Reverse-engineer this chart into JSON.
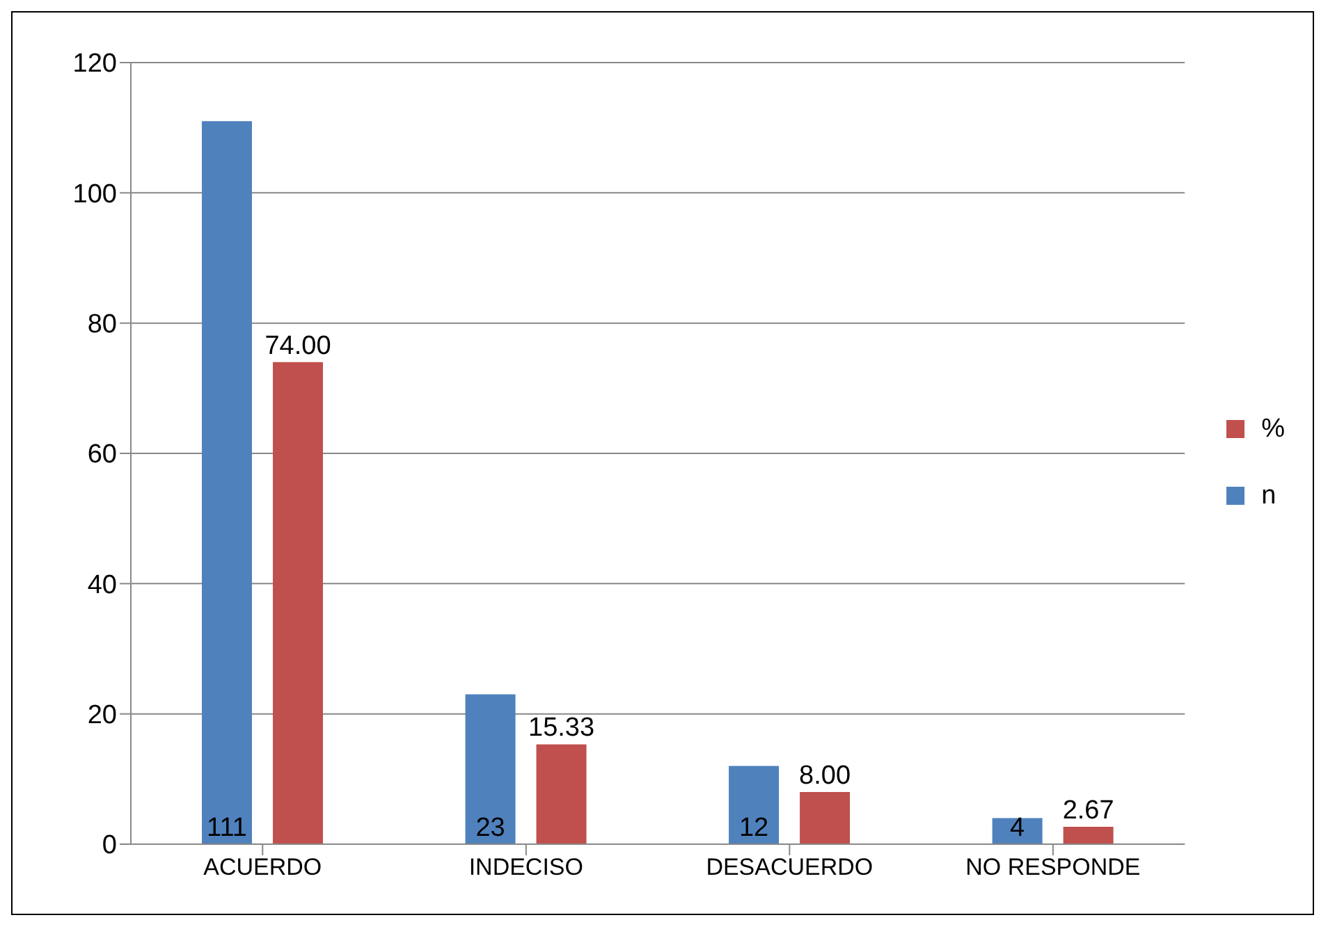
{
  "chart_data": {
    "type": "bar",
    "categories": [
      "ACUERDO",
      "INDECISO",
      "DESACUERDO",
      "NO RESPONDE"
    ],
    "series": [
      {
        "name": "n",
        "color": "#4f81bd",
        "values": [
          111,
          23,
          12,
          4
        ],
        "value_labels": [
          "111",
          "23",
          "12",
          "4"
        ]
      },
      {
        "name": "%",
        "color": "#c0504d",
        "values": [
          74.0,
          15.33,
          8.0,
          2.67
        ],
        "value_labels": [
          "74.00",
          "15.33",
          "8.00",
          "2.67"
        ]
      }
    ],
    "ylim": [
      0,
      120
    ],
    "yticks": [
      0,
      20,
      40,
      60,
      80,
      100,
      120
    ],
    "grid": "y",
    "legend": "right"
  }
}
